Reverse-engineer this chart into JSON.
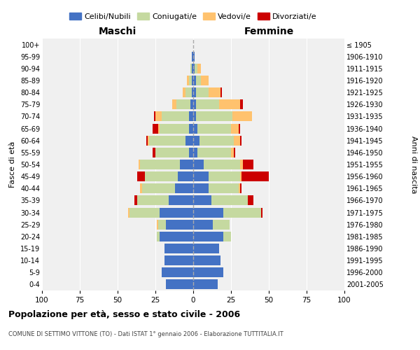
{
  "age_groups": [
    "0-4",
    "5-9",
    "10-14",
    "15-19",
    "20-24",
    "25-29",
    "30-34",
    "35-39",
    "40-44",
    "45-49",
    "50-54",
    "55-59",
    "60-64",
    "65-69",
    "70-74",
    "75-79",
    "80-84",
    "85-89",
    "90-94",
    "95-99",
    "100+"
  ],
  "birth_years": [
    "2001-2005",
    "1996-2000",
    "1991-1995",
    "1986-1990",
    "1981-1985",
    "1976-1980",
    "1971-1975",
    "1966-1970",
    "1961-1965",
    "1956-1960",
    "1951-1955",
    "1946-1950",
    "1941-1945",
    "1936-1940",
    "1931-1935",
    "1926-1930",
    "1921-1925",
    "1916-1920",
    "1911-1915",
    "1906-1910",
    "≤ 1905"
  ],
  "colors": {
    "celibi": "#4472c4",
    "coniugati": "#c5d9a0",
    "vedovi": "#ffc26e",
    "divorziati": "#cc0000"
  },
  "maschi": {
    "celibi": [
      18,
      21,
      19,
      19,
      22,
      18,
      22,
      16,
      12,
      10,
      9,
      3,
      5,
      3,
      3,
      2,
      1,
      1,
      1,
      1,
      0
    ],
    "coniugati": [
      0,
      0,
      0,
      0,
      2,
      5,
      20,
      21,
      22,
      22,
      26,
      22,
      24,
      19,
      18,
      9,
      4,
      2,
      1,
      0,
      0
    ],
    "vedovi": [
      0,
      0,
      0,
      0,
      0,
      1,
      1,
      0,
      1,
      0,
      1,
      0,
      1,
      1,
      4,
      3,
      2,
      1,
      0,
      0,
      0
    ],
    "divorziati": [
      0,
      0,
      0,
      0,
      0,
      0,
      0,
      2,
      0,
      5,
      0,
      2,
      1,
      4,
      1,
      0,
      0,
      0,
      0,
      0,
      0
    ]
  },
  "femmine": {
    "celibi": [
      16,
      20,
      18,
      17,
      20,
      13,
      20,
      12,
      10,
      10,
      7,
      3,
      4,
      3,
      2,
      2,
      2,
      2,
      1,
      1,
      0
    ],
    "coniugati": [
      0,
      0,
      0,
      0,
      5,
      11,
      25,
      24,
      20,
      21,
      24,
      22,
      23,
      22,
      24,
      15,
      8,
      3,
      2,
      0,
      0
    ],
    "vedovi": [
      0,
      0,
      0,
      0,
      0,
      0,
      0,
      0,
      1,
      1,
      2,
      2,
      4,
      5,
      13,
      14,
      8,
      5,
      2,
      0,
      0
    ],
    "divorziati": [
      0,
      0,
      0,
      0,
      0,
      0,
      1,
      4,
      1,
      18,
      7,
      1,
      1,
      1,
      0,
      2,
      1,
      0,
      0,
      0,
      0
    ]
  },
  "title": "Popolazione per età, sesso e stato civile - 2006",
  "subtitle": "COMUNE DI SETTIMO VITTONE (TO) - Dati ISTAT 1° gennaio 2006 - Elaborazione TUTTITALIA.IT",
  "xlabel_left": "Maschi",
  "xlabel_right": "Femmine",
  "ylabel_left": "Fasce di età",
  "ylabel_right": "Anni di nascita",
  "xlim": 100,
  "legend_labels": [
    "Celibi/Nubili",
    "Coniugati/e",
    "Vedovi/e",
    "Divorziati/e"
  ],
  "background_color": "#ffffff",
  "grid_color": "#cccccc"
}
